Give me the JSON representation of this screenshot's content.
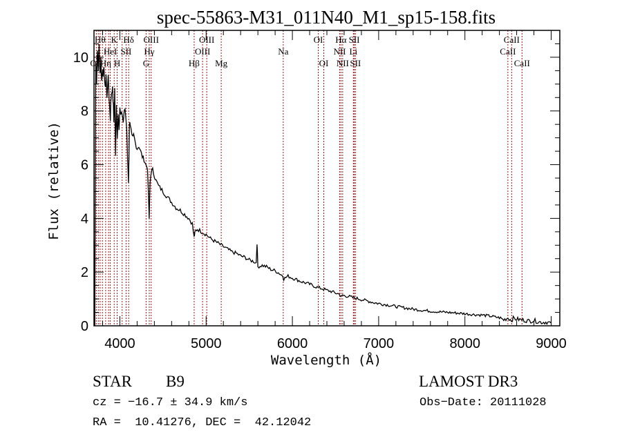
{
  "chart_data": {
    "type": "line",
    "title": "spec-55863-M31_011N40_M1_sp15-158.fits",
    "xlabel": "Wavelength (Å)",
    "ylabel": "Flux (relative)",
    "xlim": [
      3700,
      9100
    ],
    "ylim": [
      0,
      11
    ],
    "xticks": [
      4000,
      5000,
      6000,
      7000,
      8000,
      9000
    ],
    "xtick_labels": [
      "4000",
      "5000",
      "6000",
      "7000",
      "8000",
      "9000"
    ],
    "yticks": [
      0,
      2,
      4,
      6,
      8,
      10
    ],
    "ytick_labels": [
      "0",
      "2",
      "4",
      "6",
      "8",
      "10"
    ],
    "grid": false,
    "line_color": "#000000",
    "marker_line_color": "#a01010",
    "spectrum": {
      "name": "flux",
      "x": [
        3700,
        3710,
        3720,
        3730,
        3740,
        3750,
        3760,
        3770,
        3780,
        3790,
        3800,
        3810,
        3820,
        3830,
        3840,
        3850,
        3860,
        3870,
        3880,
        3890,
        3900,
        3910,
        3920,
        3930,
        3940,
        3950,
        3960,
        3970,
        3980,
        3990,
        4000,
        4020,
        4040,
        4060,
        4080,
        4100,
        4110,
        4120,
        4140,
        4160,
        4180,
        4200,
        4220,
        4240,
        4260,
        4280,
        4300,
        4320,
        4340,
        4350,
        4360,
        4380,
        4400,
        4420,
        4450,
        4500,
        4550,
        4600,
        4650,
        4700,
        4750,
        4800,
        4840,
        4860,
        4870,
        4880,
        4900,
        4950,
        5000,
        5050,
        5100,
        5150,
        5200,
        5250,
        5300,
        5350,
        5400,
        5450,
        5500,
        5550,
        5580,
        5590,
        5600,
        5650,
        5700,
        5750,
        5800,
        5850,
        5890,
        5900,
        5950,
        6000,
        6050,
        6100,
        6150,
        6200,
        6250,
        6300,
        6350,
        6400,
        6450,
        6500,
        6550,
        6563,
        6580,
        6600,
        6650,
        6700,
        6750,
        6800,
        6850,
        6900,
        6950,
        7000,
        7100,
        7200,
        7300,
        7400,
        7500,
        7600,
        7700,
        7800,
        7900,
        8000,
        8100,
        8200,
        8300,
        8400,
        8450,
        8500,
        8540,
        8560,
        8600,
        8660,
        8700,
        8750,
        8800,
        8850,
        8900,
        8950,
        9000
      ],
      "y": [
        3.2,
        0.2,
        9.8,
        9.2,
        10.2,
        9.6,
        10.4,
        9.4,
        9.9,
        9.1,
        9.7,
        9.3,
        9.5,
        8.7,
        9.4,
        8.4,
        9.2,
        9.0,
        8.2,
        7.8,
        8.6,
        8.9,
        8.5,
        7.6,
        8.8,
        6.2,
        8.4,
        7.0,
        8.1,
        7.2,
        7.9,
        8.0,
        7.6,
        8.1,
        7.4,
        5.2,
        7.6,
        7.3,
        6.9,
        7.1,
        6.8,
        6.6,
        6.7,
        6.5,
        6.3,
        6.2,
        6.0,
        5.9,
        4.0,
        5.3,
        5.7,
        5.8,
        5.6,
        5.4,
        5.2,
        5.0,
        4.8,
        4.6,
        4.4,
        4.3,
        4.15,
        4.0,
        3.8,
        3.3,
        3.45,
        3.55,
        3.6,
        3.5,
        3.4,
        3.25,
        3.15,
        3.05,
        2.95,
        2.85,
        2.75,
        2.7,
        2.6,
        2.55,
        2.45,
        2.4,
        2.35,
        3.1,
        2.2,
        2.25,
        2.2,
        2.1,
        2.05,
        1.95,
        1.85,
        1.75,
        1.85,
        1.78,
        1.72,
        1.65,
        1.6,
        1.55,
        1.48,
        1.42,
        1.38,
        1.32,
        1.28,
        1.22,
        1.18,
        1.05,
        1.15,
        1.12,
        1.1,
        1.05,
        1.02,
        0.98,
        0.94,
        0.9,
        0.86,
        0.83,
        0.78,
        0.72,
        0.67,
        0.62,
        0.58,
        0.55,
        0.52,
        0.5,
        0.48,
        0.45,
        0.42,
        0.4,
        0.36,
        0.3,
        0.22,
        0.3,
        0.2,
        0.28,
        0.25,
        0.22,
        0.2,
        0.18,
        0.2,
        0.15,
        0.13,
        0.14,
        0.1
      ]
    },
    "line_markers": [
      {
        "wavelength": 3727,
        "label": "OII",
        "row": 3
      },
      {
        "wavelength": 3750,
        "label": "",
        "row": 0
      },
      {
        "wavelength": 3771,
        "label": "Hθ",
        "row": 1
      },
      {
        "wavelength": 3798,
        "label": "",
        "row": 0
      },
      {
        "wavelength": 3835,
        "label": "Hη",
        "row": 3
      },
      {
        "wavelength": 3869,
        "label": "",
        "row": 0
      },
      {
        "wavelength": 3889,
        "label": "HeI",
        "row": 2
      },
      {
        "wavelength": 3934,
        "label": "K",
        "row": 1
      },
      {
        "wavelength": 3969,
        "label": "H",
        "row": 3
      },
      {
        "wavelength": 4026,
        "label": "",
        "row": 0
      },
      {
        "wavelength": 4072,
        "label": "SII",
        "row": 2
      },
      {
        "wavelength": 4102,
        "label": "Hδ",
        "row": 1
      },
      {
        "wavelength": 4304,
        "label": "G",
        "row": 3
      },
      {
        "wavelength": 4341,
        "label": "Hγ",
        "row": 2
      },
      {
        "wavelength": 4363,
        "label": "OIII",
        "row": 1
      },
      {
        "wavelength": 4861,
        "label": "Hβ",
        "row": 3
      },
      {
        "wavelength": 4959,
        "label": "OIII",
        "row": 2
      },
      {
        "wavelength": 5007,
        "label": "OIII",
        "row": 1
      },
      {
        "wavelength": 5175,
        "label": "Mg",
        "row": 3
      },
      {
        "wavelength": 5894,
        "label": "Na",
        "row": 2
      },
      {
        "wavelength": 6300,
        "label": "OI",
        "row": 1
      },
      {
        "wavelength": 6364,
        "label": "OI",
        "row": 3
      },
      {
        "wavelength": 6548,
        "label": "NII",
        "row": 2
      },
      {
        "wavelength": 6563,
        "label": "Hα",
        "row": 1
      },
      {
        "wavelength": 6583,
        "label": "NII",
        "row": 3
      },
      {
        "wavelength": 6707,
        "label": "Li",
        "row": 2
      },
      {
        "wavelength": 6717,
        "label": "SII",
        "row": 1
      },
      {
        "wavelength": 6731,
        "label": "SII",
        "row": 3
      },
      {
        "wavelength": 8498,
        "label": "CaII",
        "row": 2
      },
      {
        "wavelength": 8542,
        "label": "CaII",
        "row": 1
      },
      {
        "wavelength": 8662,
        "label": "CaII",
        "row": 3
      }
    ]
  },
  "info": {
    "object_class": "STAR",
    "subclass": "B9",
    "survey": "LAMOST DR3",
    "redshift_line": "cz = −16.7 ± 34.9 km/s",
    "coords_line": "RA =  10.41276, DEC =  42.12042",
    "obs_date_line": "Obs−Date: 20111028"
  }
}
